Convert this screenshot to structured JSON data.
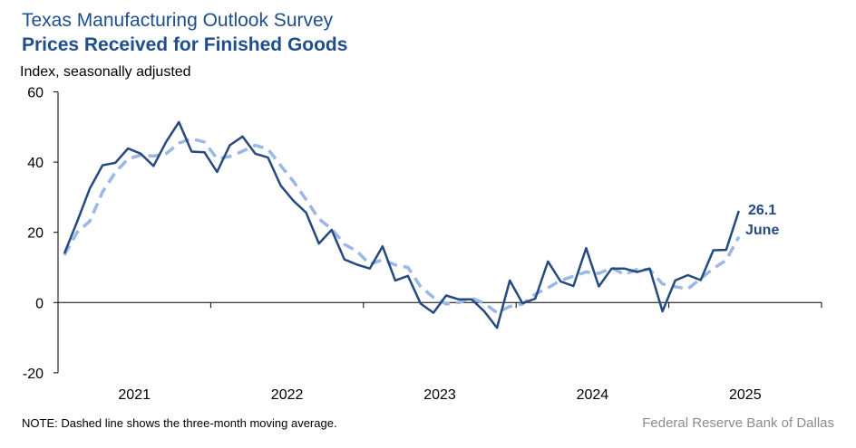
{
  "header": {
    "title": "Texas Manufacturing Outlook Survey",
    "subtitle": "Prices Received for Finished Goods",
    "unit_label": "Index, seasonally adjusted"
  },
  "footer": {
    "note": "NOTE: Dashed line shows the three-month moving average.",
    "source": "Federal Reserve Bank of Dallas"
  },
  "annotation": {
    "value": "26.1",
    "month": "June"
  },
  "colors": {
    "title": "#1f4e8c",
    "series": "#254a80",
    "moving_average": "#9ab8e6",
    "source": "#8c8c8c"
  },
  "chart_data": {
    "type": "line",
    "ylim": [
      -20,
      60
    ],
    "yticks": [
      "-20",
      "0",
      "20",
      "40",
      "60"
    ],
    "xticks": [
      "2021",
      "2022",
      "2023",
      "2024",
      "2025"
    ],
    "x_start": "2021-01",
    "x_end": "2025-06",
    "frequency": "monthly",
    "grid": false,
    "series": [
      {
        "style": "solid",
        "values": [
          14.0,
          23.0,
          32.5,
          39.1,
          39.8,
          43.9,
          42.4,
          38.9,
          45.8,
          51.4,
          43.0,
          42.8,
          37.2,
          44.8,
          47.3,
          42.4,
          41.3,
          33.3,
          29.0,
          25.6,
          16.8,
          20.7,
          12.3,
          10.8,
          9.7,
          16.0,
          6.3,
          7.6,
          -0.3,
          -2.9,
          2.0,
          0.9,
          0.9,
          -2.5,
          -7.2,
          6.3,
          -0.2,
          1.1,
          11.7,
          6.0,
          4.7,
          15.5,
          4.6,
          9.7,
          9.7,
          8.7,
          9.7,
          -2.5,
          6.3,
          7.8,
          6.4,
          14.9,
          15.0,
          26.1
        ]
      },
      {
        "style": "dashed",
        "values": [
          13.5,
          20.0,
          23.2,
          31.5,
          37.1,
          40.9,
          42.0,
          41.7,
          42.4,
          45.4,
          46.7,
          45.7,
          41.0,
          41.6,
          43.1,
          44.8,
          43.7,
          39.0,
          34.5,
          29.3,
          23.8,
          21.0,
          16.6,
          14.6,
          10.9,
          12.2,
          10.7,
          10.0,
          4.5,
          1.5,
          -0.4,
          0.0,
          1.3,
          -0.2,
          -2.9,
          -1.1,
          -0.4,
          2.4,
          4.2,
          6.3,
          7.5,
          8.7,
          8.3,
          9.9,
          8.0,
          9.4,
          9.4,
          5.3,
          4.5,
          3.9,
          6.8,
          9.7,
          12.1,
          18.7
        ]
      }
    ]
  }
}
